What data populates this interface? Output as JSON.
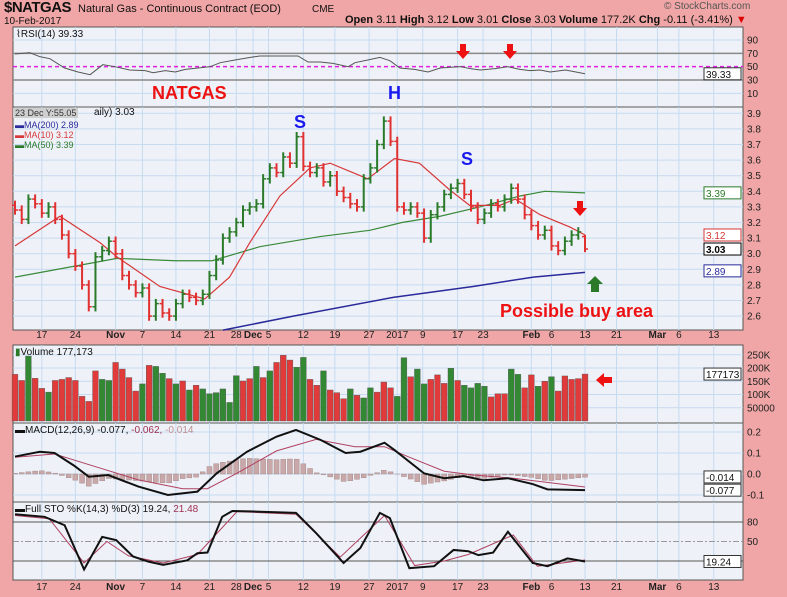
{
  "header": {
    "symbol": "$NATGAS",
    "name": "Natural Gas - Continuous Contract (EOD)",
    "exchange": "CME",
    "date": "10-Feb-2017",
    "copyright": "© StockCharts.com",
    "open_label": "Open",
    "open": "3.11",
    "high_label": "High",
    "high": "3.12",
    "low_label": "Low",
    "low": "3.01",
    "close_label": "Close",
    "close": "3.03",
    "volume_label": "Volume",
    "volume": "177.2K",
    "chg_label": "Chg",
    "chg": "-0.11 (-3.41%)",
    "chg_arrow": "▼"
  },
  "colors": {
    "background": "#f0a6a6",
    "panel": "#eef2f8",
    "grid": "#c6daf0",
    "up": "#2a7a2a",
    "down": "#e03030",
    "ma200": "#2a2a9a",
    "ma10": "#d83838",
    "ma50": "#3a8a3a",
    "annotation_red": "#ee1111",
    "annotation_blue": "#1a1aee"
  },
  "legends": {
    "rsi": "RSI(14) 39.33",
    "hover_tooltip": "23 Dec Y:55.05",
    "price_title": "aily) 3.03",
    "ma200": "MA(200) 2.89",
    "ma10": "MA(10) 3.12",
    "ma50": "MA(50) 3.39",
    "volume": "Volume 177,173",
    "macd_prefix": "MACD(12,26,9) -0.077,",
    "macd_signal": "-0.062,",
    "macd_hist": "-0.014",
    "sto_prefix": "Full STO %K(14,3) %D(3) 19.24,",
    "sto_d": "21.48"
  },
  "annotations": {
    "natgas": "NATGAS",
    "head": "H",
    "shoulder_left": "S",
    "shoulder_right": "S",
    "buy_area": "Possible buy area"
  },
  "chart_data": [
    {
      "type": "ohlc",
      "panel": "price",
      "ylim": [
        2.5,
        3.95
      ],
      "y_ticks": [
        "3.9",
        "3.8",
        "3.7",
        "3.6",
        "3.5",
        "3.4",
        "3.3",
        "3.2",
        "3.1",
        "3.0",
        "2.9",
        "2.8",
        "2.7",
        "2.6"
      ],
      "last_values": {
        "ma50": "3.39",
        "ma10": "3.12",
        "close": "3.03",
        "ma200": "2.89"
      },
      "x_ticks": [
        {
          "label": "17",
          "pos": 5
        },
        {
          "label": "24",
          "pos": 10
        },
        {
          "label": "Nov",
          "pos": 16
        },
        {
          "label": "7",
          "pos": 20
        },
        {
          "label": "14",
          "pos": 25
        },
        {
          "label": "21",
          "pos": 30
        },
        {
          "label": "28",
          "pos": 34
        },
        {
          "label": "Dec",
          "pos": 36.5
        },
        {
          "label": "5",
          "pos": 38.8
        },
        {
          "label": "12",
          "pos": 44
        },
        {
          "label": "19",
          "pos": 48.7
        },
        {
          "label": "27",
          "pos": 53.8
        },
        {
          "label": "2017",
          "pos": 58
        },
        {
          "label": "9",
          "pos": 61.8
        },
        {
          "label": "17",
          "pos": 67
        },
        {
          "label": "23",
          "pos": 70.8
        },
        {
          "label": "Feb",
          "pos": 78
        },
        {
          "label": "6",
          "pos": 81
        },
        {
          "label": "13",
          "pos": 86
        },
        {
          "label": "21",
          "pos": 90.7
        },
        {
          "label": "Mar",
          "pos": 96.8
        },
        {
          "label": "6",
          "pos": 100
        },
        {
          "label": "13",
          "pos": 105.2
        }
      ],
      "close": [
        3.28,
        3.22,
        3.35,
        3.32,
        3.26,
        3.3,
        3.22,
        3.12,
        3.0,
        2.92,
        2.8,
        2.66,
        2.98,
        3.02,
        3.08,
        3.0,
        2.86,
        2.8,
        2.75,
        2.78,
        2.6,
        2.68,
        2.62,
        2.6,
        2.68,
        2.74,
        2.72,
        2.7,
        2.74,
        2.86,
        2.96,
        3.1,
        3.14,
        3.2,
        3.28,
        3.3,
        3.32,
        3.48,
        3.55,
        3.52,
        3.62,
        3.58,
        3.75,
        3.56,
        3.52,
        3.55,
        3.46,
        3.5,
        3.4,
        3.36,
        3.32,
        3.3,
        3.48,
        3.55,
        3.7,
        3.85,
        3.72,
        3.3,
        3.28,
        3.3,
        3.26,
        3.1,
        3.25,
        3.3,
        3.38,
        3.42,
        3.45,
        3.38,
        3.3,
        3.22,
        3.26,
        3.32,
        3.3,
        3.35,
        3.42,
        3.35,
        3.25,
        3.18,
        3.12,
        3.15,
        3.05,
        3.02,
        3.08,
        3.12,
        3.14,
        3.03
      ],
      "ma10": [
        [
          1,
          3.05
        ],
        [
          7.7,
          3.24
        ],
        [
          13.7,
          3.07
        ],
        [
          16.2,
          2.98
        ],
        [
          22.6,
          2.79
        ],
        [
          29.3,
          2.71
        ],
        [
          33,
          2.85
        ],
        [
          36,
          3.07
        ],
        [
          40.5,
          3.37
        ],
        [
          45,
          3.55
        ],
        [
          48,
          3.58
        ],
        [
          53.6,
          3.48
        ],
        [
          57.6,
          3.61
        ],
        [
          61.3,
          3.58
        ],
        [
          65.8,
          3.41
        ],
        [
          68.8,
          3.31
        ],
        [
          73.3,
          3.31
        ],
        [
          75.6,
          3.35
        ],
        [
          79.3,
          3.25
        ],
        [
          83.8,
          3.17
        ],
        [
          86,
          3.12
        ]
      ],
      "ma50": [
        [
          1,
          2.85
        ],
        [
          16.2,
          2.97
        ],
        [
          24.9,
          2.955
        ],
        [
          30.4,
          2.955
        ],
        [
          37.5,
          3.045
        ],
        [
          46.5,
          3.11
        ],
        [
          53.9,
          3.15
        ],
        [
          58.7,
          3.2
        ],
        [
          64.4,
          3.24
        ],
        [
          70.3,
          3.3
        ],
        [
          76.3,
          3.37
        ],
        [
          80,
          3.4
        ],
        [
          86,
          3.39
        ]
      ],
      "ma200": [
        [
          32,
          2.51
        ],
        [
          42.5,
          2.6
        ],
        [
          57.4,
          2.72
        ],
        [
          69.3,
          2.79
        ],
        [
          78.3,
          2.85
        ],
        [
          86,
          2.88
        ]
      ]
    },
    {
      "type": "line",
      "panel": "rsi",
      "title": "RSI(14)",
      "ylim": [
        0,
        100
      ],
      "y_ticks": [
        "90",
        "70",
        "50",
        "30",
        "10"
      ],
      "last_value": "39.33",
      "values": [
        [
          1,
          69
        ],
        [
          3.2,
          71
        ],
        [
          4.7,
          65
        ],
        [
          6.2,
          62
        ],
        [
          8.4,
          48
        ],
        [
          10.4,
          42
        ],
        [
          12.2,
          38
        ],
        [
          14.1,
          53
        ],
        [
          15.9,
          50
        ],
        [
          18.1,
          45
        ],
        [
          20.4,
          44
        ],
        [
          21.6,
          41
        ],
        [
          23.4,
          44
        ],
        [
          24.9,
          42
        ],
        [
          26.4,
          46
        ],
        [
          28.3,
          48
        ],
        [
          30.1,
          50
        ],
        [
          31.6,
          56
        ],
        [
          33.8,
          60
        ],
        [
          36.1,
          64
        ],
        [
          37.5,
          66
        ],
        [
          39.5,
          66
        ],
        [
          41.3,
          66
        ],
        [
          43.2,
          66
        ],
        [
          44.7,
          57
        ],
        [
          46.5,
          57
        ],
        [
          48.4,
          55
        ],
        [
          50.7,
          50
        ],
        [
          51.7,
          56
        ],
        [
          53.6,
          60
        ],
        [
          55.4,
          64
        ],
        [
          56.9,
          59
        ],
        [
          58.4,
          48
        ],
        [
          60.6,
          46
        ],
        [
          62.6,
          42
        ],
        [
          64.4,
          48
        ],
        [
          67.4,
          50
        ],
        [
          68.9,
          47
        ],
        [
          70.4,
          45
        ],
        [
          72.6,
          47
        ],
        [
          74.5,
          50
        ],
        [
          76.3,
          46
        ],
        [
          77.8,
          44
        ],
        [
          79.3,
          45
        ],
        [
          80.8,
          42
        ],
        [
          83.1,
          45
        ],
        [
          86,
          39.33
        ]
      ]
    },
    {
      "type": "bar",
      "panel": "volume",
      "title": "Volume",
      "ylim": [
        0,
        270000
      ],
      "y_ticks": [
        "250K",
        "200K",
        "150K",
        "100K",
        "50000"
      ],
      "last_value": "177173",
      "values": [
        176000,
        153000,
        245000,
        161000,
        123000,
        109000,
        153000,
        157000,
        164000,
        153000,
        93000,
        74000,
        189000,
        157000,
        153000,
        221000,
        196000,
        164000,
        113000,
        140000,
        210000,
        206000,
        180000,
        160000,
        140000,
        151000,
        117000,
        135000,
        121000,
        103000,
        107000,
        121000,
        70000,
        171000,
        151000,
        160000,
        206000,
        164000,
        189000,
        221000,
        248000,
        230000,
        203000,
        240000,
        157000,
        135000,
        189000,
        117000,
        107000,
        84000,
        121000,
        97000,
        87000,
        125000,
        109000,
        147000,
        125000,
        93000,
        239000,
        167000,
        196000,
        140000,
        157000,
        174000,
        142000,
        199000,
        153000,
        135000,
        125000,
        142000,
        131000,
        91000,
        103000,
        103000,
        196000,
        176000,
        125000,
        174000,
        131000,
        150000,
        167000,
        113000,
        170000,
        157000,
        160000,
        177173
      ],
      "direction": "ddudduddddddduudddduduudududuuuuuuddududdduudduddduduuddduuduuddduduuuuddduuddudud"
    },
    {
      "type": "line",
      "panel": "macd",
      "title": "MACD(12,26,9)",
      "ylim": [
        -0.13,
        0.25
      ],
      "y_ticks": [
        "0.2",
        "0.1",
        "0.0",
        "-0.1"
      ],
      "last_values": {
        "macd": "-0.077",
        "signal": "-0.062",
        "hist": "-0.014"
      },
      "macd": [
        [
          1,
          0.083
        ],
        [
          4.7,
          0.106
        ],
        [
          6.9,
          0.1
        ],
        [
          9.8,
          0.04
        ],
        [
          12,
          -0.013
        ],
        [
          14.9,
          -0.005
        ],
        [
          19.4,
          -0.06
        ],
        [
          23.8,
          -0.1
        ],
        [
          28.2,
          -0.084
        ],
        [
          31.1,
          0.004
        ],
        [
          35.6,
          0.106
        ],
        [
          40,
          0.178
        ],
        [
          42.9,
          0.21
        ],
        [
          46.6,
          0.162
        ],
        [
          50.3,
          0.1
        ],
        [
          52.5,
          0.106
        ],
        [
          56.1,
          0.149
        ],
        [
          57.6,
          0.114
        ],
        [
          62,
          0.003
        ],
        [
          65,
          -0.02
        ],
        [
          67.9,
          -0.01
        ],
        [
          70.9,
          -0.03
        ],
        [
          74.5,
          -0.02
        ],
        [
          78.2,
          -0.048
        ],
        [
          80.4,
          -0.073
        ],
        [
          86,
          -0.077
        ]
      ],
      "signal": [
        [
          1,
          0.08
        ],
        [
          6.9,
          0.095
        ],
        [
          13.5,
          0.03
        ],
        [
          19.4,
          -0.028
        ],
        [
          26,
          -0.07
        ],
        [
          29.7,
          -0.07
        ],
        [
          34.1,
          0.004
        ],
        [
          40,
          0.11
        ],
        [
          45.9,
          0.165
        ],
        [
          51.7,
          0.13
        ],
        [
          56.1,
          0.13
        ],
        [
          59.8,
          0.08
        ],
        [
          65,
          0.013
        ],
        [
          69.4,
          -0.005
        ],
        [
          75.3,
          -0.02
        ],
        [
          86,
          -0.062
        ]
      ]
    },
    {
      "type": "line",
      "panel": "sto",
      "title": "Full STO %K(14,3) %D(3)",
      "ylim": [
        -5,
        105
      ],
      "y_ticks": [
        "80",
        "50"
      ],
      "last_value": "19.24",
      "k": [
        [
          1,
          92
        ],
        [
          5.4,
          88
        ],
        [
          8.4,
          75
        ],
        [
          11.3,
          7
        ],
        [
          14,
          57
        ],
        [
          16.1,
          52
        ],
        [
          18.6,
          27
        ],
        [
          20.9,
          19
        ],
        [
          23.1,
          14
        ],
        [
          26.7,
          21
        ],
        [
          28.2,
          32
        ],
        [
          29.7,
          33
        ],
        [
          31.9,
          88
        ],
        [
          33.4,
          97
        ],
        [
          37,
          96
        ],
        [
          42.9,
          94
        ],
        [
          45.9,
          63
        ],
        [
          50,
          17
        ],
        [
          52.5,
          40
        ],
        [
          55.4,
          94
        ],
        [
          56.9,
          86
        ],
        [
          59.8,
          9
        ],
        [
          63.5,
          12
        ],
        [
          66.4,
          37
        ],
        [
          68.6,
          35
        ],
        [
          70.1,
          29
        ],
        [
          72.3,
          33
        ],
        [
          74.5,
          65
        ],
        [
          78.2,
          17
        ],
        [
          80.4,
          12
        ],
        [
          83.4,
          24
        ],
        [
          86,
          19.24
        ]
      ],
      "d": [
        [
          1,
          90
        ],
        [
          6.1,
          85
        ],
        [
          11.3,
          17
        ],
        [
          14.7,
          50
        ],
        [
          17.9,
          28
        ],
        [
          23.1,
          17
        ],
        [
          28.2,
          30
        ],
        [
          34.1,
          96
        ],
        [
          42.9,
          92
        ],
        [
          49.5,
          26
        ],
        [
          53.2,
          62
        ],
        [
          56.1,
          90
        ],
        [
          60.6,
          13
        ],
        [
          65,
          20
        ],
        [
          68.6,
          30
        ],
        [
          75.3,
          60
        ],
        [
          78.9,
          12
        ],
        [
          86,
          21.48
        ]
      ]
    }
  ]
}
